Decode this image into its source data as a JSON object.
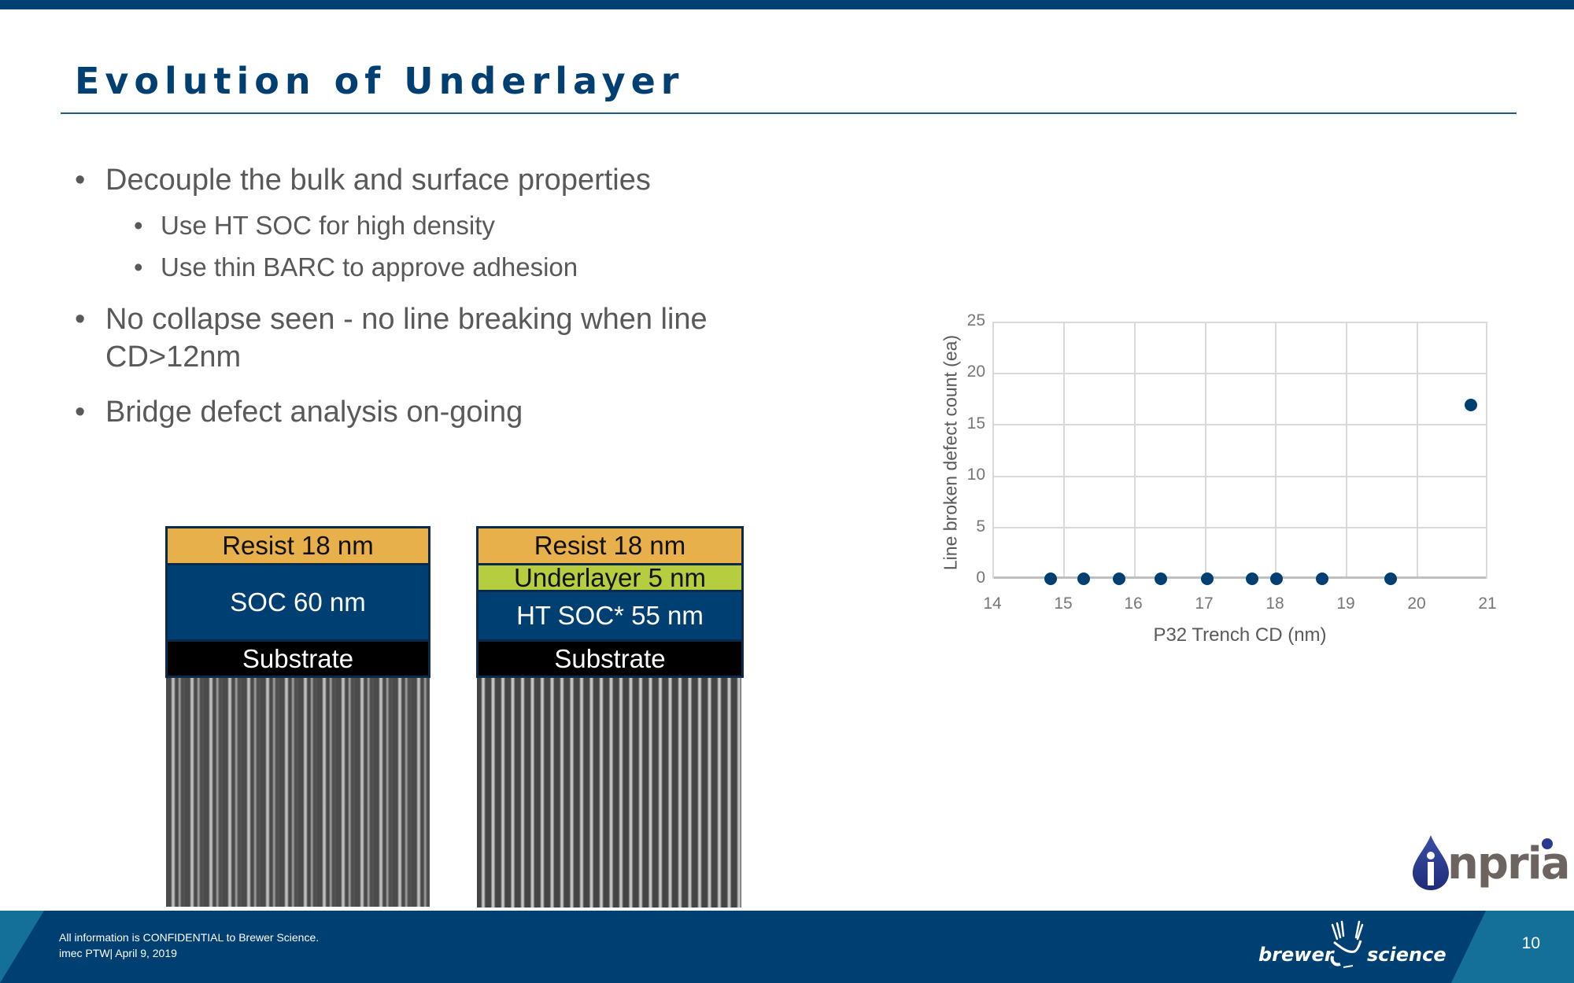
{
  "slide": {
    "title": "Evolution of Underlayer",
    "accent_color": "#003f72",
    "bullets": [
      {
        "level": 1,
        "text": "Decouple the bulk and surface properties"
      },
      {
        "level": 2,
        "text": "Use HT SOC for high density"
      },
      {
        "level": 2,
        "text": "Use thin BARC to approve adhesion"
      },
      {
        "level": 1,
        "text": "No collapse seen - no line breaking when line"
      },
      {
        "level": 1,
        "text": "CD>12nm",
        "continuation": true
      },
      {
        "level": 1,
        "text": "Bridge defect analysis on-going"
      }
    ],
    "bullet_glyph": "•"
  },
  "stacks": [
    {
      "layers": [
        {
          "label": "Resist 18 nm",
          "color": "#e8b04a"
        },
        {
          "label": "SOC 60 nm",
          "color": "#003f72"
        },
        {
          "label": "Substrate",
          "color": "#000000"
        }
      ],
      "sem_image": "collapsed-wavy-lines-sem"
    },
    {
      "layers": [
        {
          "label": "Resist 18 nm",
          "color": "#e8b04a"
        },
        {
          "label": "Underlayer 5 nm",
          "color": "#b5cd3e"
        },
        {
          "label": "HT SOC* 55 nm",
          "color": "#003f72"
        },
        {
          "label": "Substrate",
          "color": "#000000"
        }
      ],
      "sem_image": "straight-lines-sem"
    }
  ],
  "chart_data": {
    "type": "scatter",
    "title": "",
    "xlabel": "P32 Trench CD (nm)",
    "ylabel": "Line broken defect count (ea)",
    "xlim": [
      14,
      21
    ],
    "ylim": [
      0,
      25
    ],
    "x_ticks": [
      "14",
      "15",
      "16",
      "17",
      "18",
      "19",
      "20",
      "21"
    ],
    "y_ticks": [
      "0",
      "5",
      "10",
      "15",
      "20",
      "25"
    ],
    "grid": true,
    "legend": null,
    "marker_color": "#003f72",
    "series": [
      {
        "name": "Line broken defect count",
        "x": [
          14.8,
          15.27,
          15.77,
          16.37,
          17.02,
          17.66,
          18.01,
          18.65,
          19.63,
          20.77
        ],
        "y": [
          0,
          0,
          0,
          0,
          0,
          0,
          0,
          0,
          0,
          17
        ]
      }
    ]
  },
  "logos": {
    "partner": "inpria",
    "partner_word": "npria",
    "company_left": "brewer",
    "company_right": "science"
  },
  "footer": {
    "line1": "All information is CONFIDENTIAL to Brewer Science.",
    "line2": "imec PTW| April 9, 2019",
    "page_number": "10"
  }
}
